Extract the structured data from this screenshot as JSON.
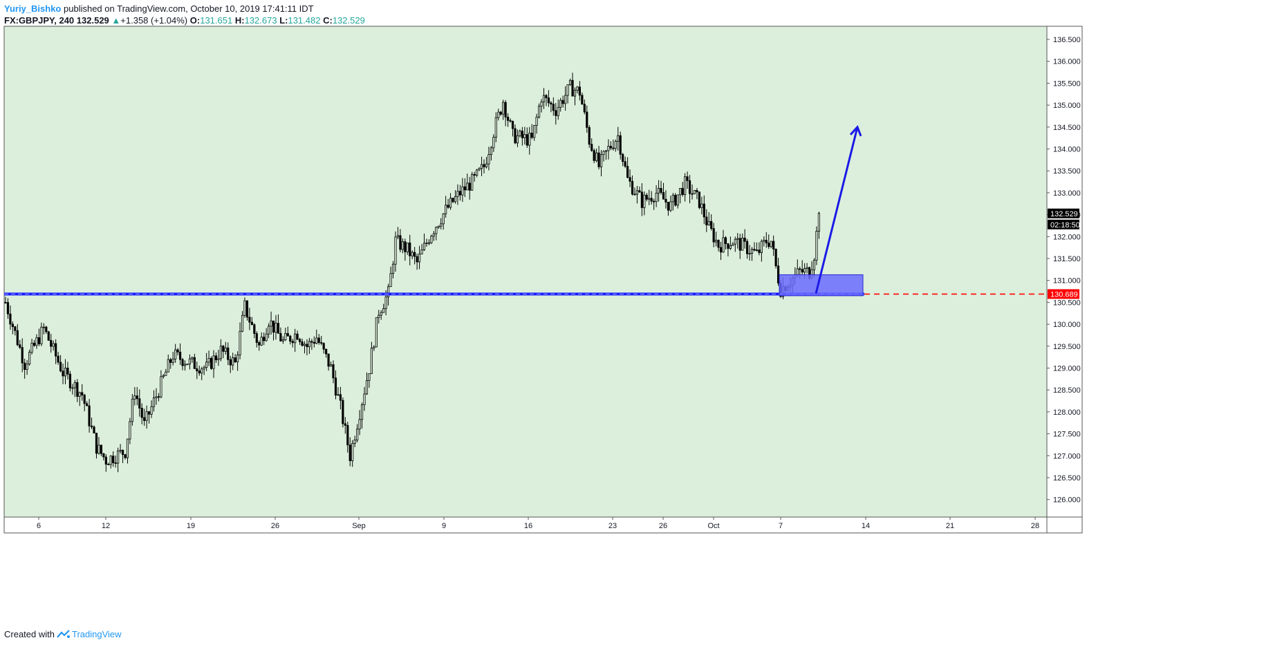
{
  "header": {
    "author": "Yuriy_Bishko",
    "published_text": "published on TradingView.com, October 10, 2019 17:41:11 IDT",
    "symbol": "FX:GBPJPY, 240",
    "last": "132.529",
    "change_arrow": "▲",
    "change": "+1.358 (+1.04%)",
    "o_label": "O:",
    "o": "131.651",
    "h_label": "H:",
    "h": "132.673",
    "l_label": "L:",
    "l": "131.482",
    "c_label": "C:",
    "c": "132.529"
  },
  "footer": {
    "created_with": "Created with",
    "brand": "TradingView",
    "logo_icon": "tradingview-logo-icon"
  },
  "colors": {
    "background": "#dcefdc",
    "candle": "#000000",
    "support_line": "#1a1aff",
    "zone_fill": "#6b6bff",
    "arrow": "#1a1ae6",
    "price_label_last": "#000000",
    "price_label_red": "#ff0000",
    "brand_blue": "#2196f3"
  },
  "chart_data": {
    "type": "candlestick",
    "title": "",
    "symbol": "FX:GBPJPY",
    "interval": "240",
    "xlabel": "",
    "ylabel": "",
    "ylim": [
      125.6,
      136.8
    ],
    "y_ticks": [
      "126.000",
      "126.500",
      "127.000",
      "127.500",
      "128.000",
      "128.500",
      "129.000",
      "129.500",
      "130.000",
      "130.500",
      "131.000",
      "131.500",
      "132.000",
      "132.500",
      "133.000",
      "133.500",
      "134.000",
      "134.500",
      "135.000",
      "135.500",
      "136.000",
      "136.500"
    ],
    "x_ticks": [
      "6",
      "12",
      "19",
      "26",
      "Sep",
      "9",
      "16",
      "23",
      "26",
      "Oct",
      "7",
      "14",
      "21",
      "28"
    ],
    "last_price_label": "132.529",
    "countdown_label": "02:18:50",
    "support_price_label": "130.689",
    "support_level": 130.689,
    "anchors": [
      {
        "i": 0,
        "p": 130.5
      },
      {
        "i": 8,
        "p": 129.1
      },
      {
        "i": 16,
        "p": 129.9
      },
      {
        "i": 24,
        "p": 128.9
      },
      {
        "i": 32,
        "p": 128.4
      },
      {
        "i": 38,
        "p": 127.2
      },
      {
        "i": 42,
        "p": 126.9
      },
      {
        "i": 50,
        "p": 127.1
      },
      {
        "i": 54,
        "p": 128.5
      },
      {
        "i": 58,
        "p": 127.7
      },
      {
        "i": 64,
        "p": 128.5
      },
      {
        "i": 70,
        "p": 129.3
      },
      {
        "i": 78,
        "p": 129.1
      },
      {
        "i": 84,
        "p": 129.0
      },
      {
        "i": 90,
        "p": 129.4
      },
      {
        "i": 96,
        "p": 129.1
      },
      {
        "i": 100,
        "p": 130.4
      },
      {
        "i": 106,
        "p": 129.5
      },
      {
        "i": 110,
        "p": 130.1
      },
      {
        "i": 116,
        "p": 129.6
      },
      {
        "i": 122,
        "p": 129.8
      },
      {
        "i": 126,
        "p": 129.5
      },
      {
        "i": 130,
        "p": 129.7
      },
      {
        "i": 136,
        "p": 129.0
      },
      {
        "i": 140,
        "p": 128.1
      },
      {
        "i": 144,
        "p": 127.0
      },
      {
        "i": 148,
        "p": 128.0
      },
      {
        "i": 152,
        "p": 129.0
      },
      {
        "i": 156,
        "p": 130.3
      },
      {
        "i": 160,
        "p": 130.7
      },
      {
        "i": 163,
        "p": 131.9
      },
      {
        "i": 168,
        "p": 131.7
      },
      {
        "i": 172,
        "p": 131.4
      },
      {
        "i": 178,
        "p": 132.1
      },
      {
        "i": 184,
        "p": 132.6
      },
      {
        "i": 190,
        "p": 133.0
      },
      {
        "i": 196,
        "p": 133.3
      },
      {
        "i": 200,
        "p": 133.6
      },
      {
        "i": 204,
        "p": 134.4
      },
      {
        "i": 208,
        "p": 135.1
      },
      {
        "i": 212,
        "p": 134.3
      },
      {
        "i": 220,
        "p": 134.2
      },
      {
        "i": 224,
        "p": 135.2
      },
      {
        "i": 230,
        "p": 134.9
      },
      {
        "i": 236,
        "p": 135.4
      },
      {
        "i": 240,
        "p": 135.3
      },
      {
        "i": 244,
        "p": 134.2
      },
      {
        "i": 248,
        "p": 133.6
      },
      {
        "i": 252,
        "p": 134.0
      },
      {
        "i": 256,
        "p": 134.3
      },
      {
        "i": 260,
        "p": 133.3
      },
      {
        "i": 266,
        "p": 132.8
      },
      {
        "i": 272,
        "p": 133.0
      },
      {
        "i": 278,
        "p": 132.7
      },
      {
        "i": 284,
        "p": 133.2
      },
      {
        "i": 290,
        "p": 132.8
      },
      {
        "i": 294,
        "p": 132.2
      },
      {
        "i": 298,
        "p": 131.8
      },
      {
        "i": 304,
        "p": 131.9
      },
      {
        "i": 308,
        "p": 131.8
      },
      {
        "i": 314,
        "p": 131.6
      },
      {
        "i": 318,
        "p": 131.9
      },
      {
        "i": 320,
        "p": 131.9
      },
      {
        "i": 322,
        "p": 131.3
      },
      {
        "i": 324,
        "p": 130.8
      },
      {
        "i": 328,
        "p": 131.0
      },
      {
        "i": 332,
        "p": 131.2
      },
      {
        "i": 336,
        "p": 131.2
      },
      {
        "i": 338,
        "p": 131.6
      },
      {
        "i": 340,
        "p": 132.53
      }
    ],
    "support_zone": {
      "x_from": "Oct 7",
      "x_to": "Oct 14",
      "y_from": 130.65,
      "y_to": 131.13
    },
    "projection_arrow": {
      "from_price": 130.7,
      "to_price": 134.5,
      "x_to": "Oct 14"
    }
  }
}
